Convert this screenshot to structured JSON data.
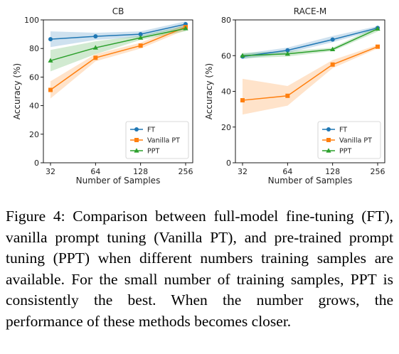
{
  "colors": {
    "FT": "#1f77b4",
    "Vanilla PT": "#ff7f0e",
    "PPT": "#2ca02c"
  },
  "chart_data": [
    {
      "type": "line",
      "title": "CB",
      "xlabel": "Number of Samples",
      "ylabel": "Accuracy (%)",
      "categories": [
        "32",
        "64",
        "128",
        "256"
      ],
      "ylim": [
        0,
        100
      ],
      "yticks": [
        "0",
        "20",
        "40",
        "60",
        "80",
        "100"
      ],
      "legend_position": "lower-right",
      "series": [
        {
          "name": "FT",
          "marker": "circle",
          "values": [
            86.5,
            88.5,
            90,
            97
          ],
          "lower": [
            81,
            86,
            88,
            95
          ],
          "upper": [
            92,
            91,
            92,
            99
          ]
        },
        {
          "name": "Vanilla PT",
          "marker": "square",
          "values": [
            51,
            73.5,
            82,
            95
          ],
          "lower": [
            45,
            71,
            80,
            93
          ],
          "upper": [
            57,
            76,
            84,
            97
          ]
        },
        {
          "name": "PPT",
          "marker": "triangle",
          "values": [
            71.5,
            80.5,
            87.5,
            94
          ],
          "lower": [
            64,
            76,
            86,
            92
          ],
          "upper": [
            79,
            85,
            89,
            96
          ]
        }
      ]
    },
    {
      "type": "line",
      "title": "RACE-M",
      "xlabel": "Number of Samples",
      "ylabel": "Accuracy (%)",
      "categories": [
        "32",
        "64",
        "128",
        "256"
      ],
      "ylim": [
        0,
        80
      ],
      "yticks": [
        "0",
        "20",
        "40",
        "60",
        "80"
      ],
      "legend_position": "lower-right",
      "series": [
        {
          "name": "FT",
          "marker": "circle",
          "values": [
            59.5,
            63,
            69,
            75.5
          ],
          "lower": [
            58,
            61.5,
            67.5,
            74.5
          ],
          "upper": [
            61,
            64.5,
            71,
            76.5
          ]
        },
        {
          "name": "Vanilla PT",
          "marker": "square",
          "values": [
            35,
            37.5,
            55,
            65
          ],
          "lower": [
            27,
            32,
            53,
            64
          ],
          "upper": [
            47,
            43,
            57.5,
            66
          ]
        },
        {
          "name": "PPT",
          "marker": "triangle",
          "values": [
            60,
            61,
            63.5,
            75
          ],
          "lower": [
            58.5,
            59.5,
            62.5,
            73.5
          ],
          "upper": [
            61.5,
            62.5,
            64.5,
            76.5
          ]
        }
      ]
    }
  ],
  "caption": "Figure 4: Comparison between full-model fine-tuning (FT), vanilla prompt tuning (Vanilla PT), and pre-trained prompt tuning (PPT) when different numbers training samples are available. For the small number of training samples, PPT is consistently the best.  When the number grows, the performance of these methods becomes closer."
}
